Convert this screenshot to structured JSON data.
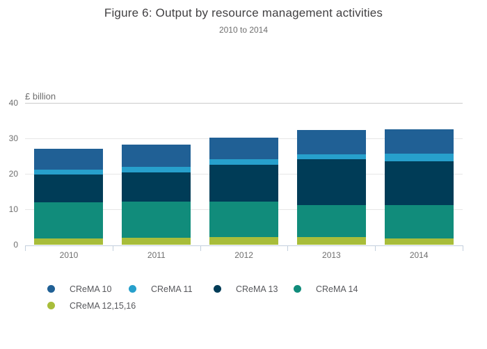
{
  "header": {
    "title": "Figure 6: Output by resource management activities",
    "subtitle": "2010 to 2014"
  },
  "chart_data": {
    "type": "bar",
    "stacked": true,
    "title": "Figure 6: Output by resource management activities",
    "subtitle": "2010 to 2014",
    "ylabel": "£ billion",
    "xlabel": "",
    "ylim": [
      0,
      40
    ],
    "yticks": [
      0,
      10,
      20,
      30,
      40
    ],
    "grid": "horizontal",
    "legend_position": "bottom",
    "categories": [
      "2010",
      "2011",
      "2012",
      "2013",
      "2014"
    ],
    "series": [
      {
        "name": "CReMA 12,15,16",
        "color": "#a8bd3a",
        "values": [
          1.7,
          1.9,
          2.1,
          2.2,
          1.8
        ]
      },
      {
        "name": "CReMA 14",
        "color": "#118c7b",
        "values": [
          10.3,
          10.3,
          10.0,
          9.0,
          9.4
        ]
      },
      {
        "name": "CReMA 13",
        "color": "#003c57",
        "values": [
          7.9,
          8.3,
          10.5,
          13.0,
          12.4
        ]
      },
      {
        "name": "CReMA 11",
        "color": "#27a0cc",
        "values": [
          1.2,
          1.4,
          1.5,
          1.3,
          2.2
        ]
      },
      {
        "name": "CReMA 10",
        "color": "#206095",
        "values": [
          5.9,
          6.3,
          6.2,
          6.9,
          6.8
        ]
      }
    ],
    "totals": [
      27.0,
      28.2,
      30.3,
      32.4,
      32.6
    ]
  },
  "legend": {
    "rows": [
      [
        "CReMA 10",
        "CReMA 11",
        "CReMA 13",
        "CReMA 14"
      ],
      [
        "CReMA 12,15,16"
      ]
    ],
    "items": [
      {
        "label": "CReMA 10"
      },
      {
        "label": "CReMA 11"
      },
      {
        "label": "CReMA 13"
      },
      {
        "label": "CReMA 14"
      },
      {
        "label": "CReMA 12,15,16"
      }
    ]
  }
}
